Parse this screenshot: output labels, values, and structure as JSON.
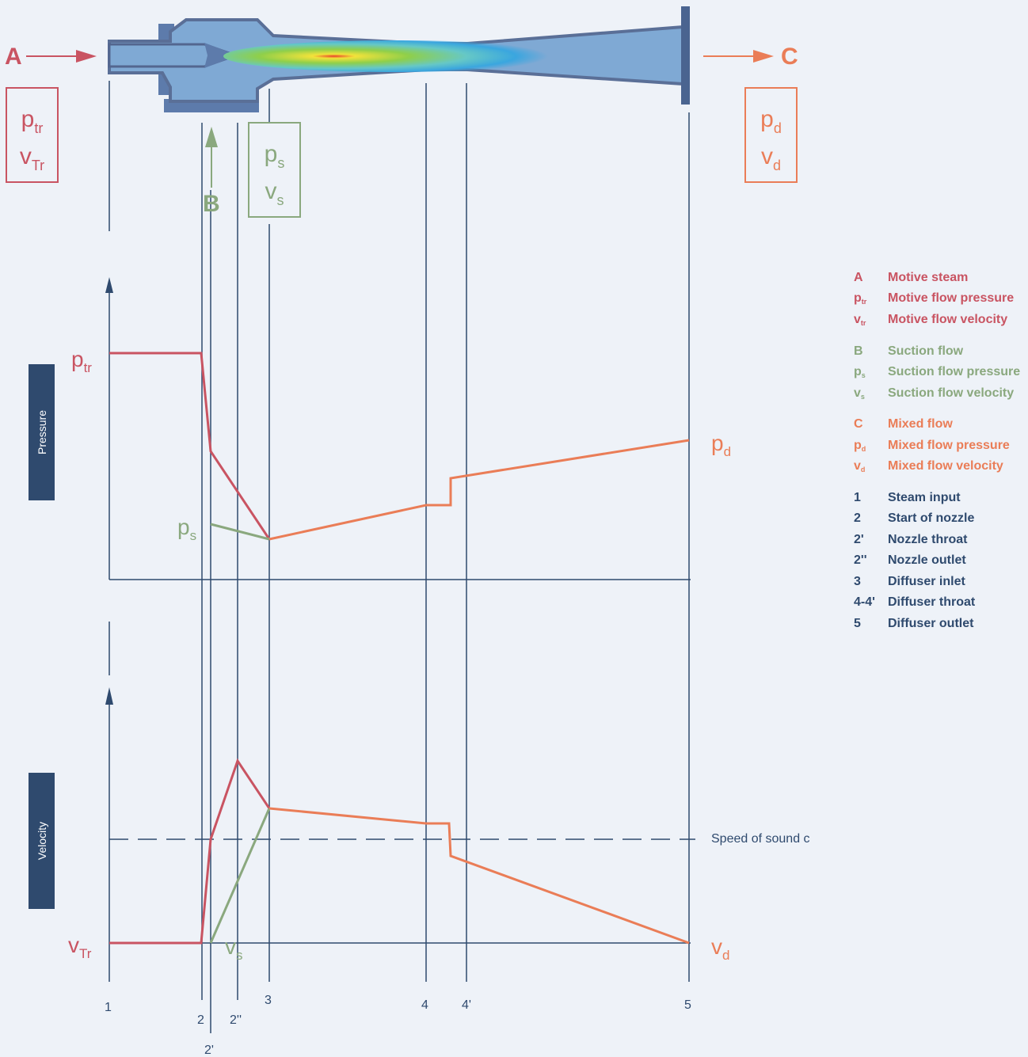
{
  "colors": {
    "motive": "#c95462",
    "suction": "#8aa87e",
    "mixed": "#ea7d57",
    "structure": "#2f4a6e",
    "body_fill": "#7fa9d4",
    "background": "#eef2f8"
  },
  "diagram": {
    "inlet_arrow_label": "A",
    "outlet_arrow_label": "C",
    "suction_arrow_label": "B",
    "motive_box": {
      "p_base": "p",
      "p_sub": "tr",
      "v_base": "v",
      "v_sub": "Tr"
    },
    "suction_box": {
      "p_base": "p",
      "p_sub": "s",
      "v_base": "v",
      "v_sub": "s"
    },
    "mixed_box": {
      "p_base": "p",
      "p_sub": "d",
      "v_base": "v",
      "v_sub": "d"
    }
  },
  "pressure_chart": {
    "band_label": "Pressure",
    "motive_label": {
      "base": "p",
      "sub": "tr"
    },
    "suction_label": {
      "base": "p",
      "sub": "s"
    },
    "mixed_label": {
      "base": "p",
      "sub": "d"
    }
  },
  "velocity_chart": {
    "band_label": "Velocity",
    "motive_label": {
      "base": "v",
      "sub": "Tr"
    },
    "suction_label": {
      "base": "v",
      "sub": "s"
    },
    "mixed_label": {
      "base": "v",
      "sub": "d"
    },
    "speed_of_sound_label": "Speed of sound c"
  },
  "positions": [
    "1",
    "2",
    "2'",
    "2''",
    "3",
    "4",
    "4'",
    "5"
  ],
  "legend": {
    "groups": [
      {
        "color": "motive",
        "items": [
          {
            "key": "A",
            "key_sub": "",
            "text": "Motive steam"
          },
          {
            "key": "p",
            "key_sub": "tr",
            "text": "Motive flow pressure"
          },
          {
            "key": "v",
            "key_sub": "tr",
            "text": "Motive flow velocity"
          }
        ]
      },
      {
        "color": "suction",
        "items": [
          {
            "key": "B",
            "key_sub": "",
            "text": "Suction flow"
          },
          {
            "key": "p",
            "key_sub": "s",
            "text": "Suction flow pressure"
          },
          {
            "key": "v",
            "key_sub": "s",
            "text": "Suction flow velocity"
          }
        ]
      },
      {
        "color": "mixed",
        "items": [
          {
            "key": "C",
            "key_sub": "",
            "text": "Mixed flow"
          },
          {
            "key": "p",
            "key_sub": "d",
            "text": "Mixed flow pressure"
          },
          {
            "key": "v",
            "key_sub": "d",
            "text": "Mixed flow velocity"
          }
        ]
      },
      {
        "color": "structure",
        "items": [
          {
            "key": "1",
            "key_sub": "",
            "text": "Steam input"
          },
          {
            "key": "2",
            "key_sub": "",
            "text": "Start of nozzle"
          },
          {
            "key": "2'",
            "key_sub": "",
            "text": "Nozzle throat"
          },
          {
            "key": "2''",
            "key_sub": "",
            "text": "Nozzle outlet"
          },
          {
            "key": "3",
            "key_sub": "",
            "text": "Diffuser inlet"
          },
          {
            "key": "4-4'",
            "key_sub": "",
            "text": "Diffuser throat"
          },
          {
            "key": "5",
            "key_sub": "",
            "text": "Diffuser outlet"
          }
        ]
      }
    ]
  }
}
